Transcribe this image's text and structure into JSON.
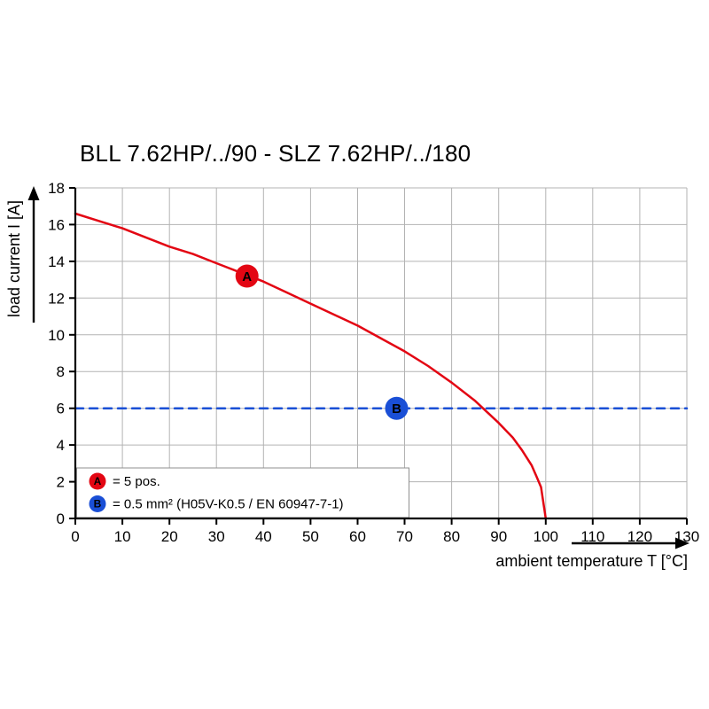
{
  "colors": {
    "curve_red": "#e30613",
    "limit_blue": "#1a4fd6",
    "grid": "#b3b3b3",
    "axis": "#000000",
    "legend_border": "#8f8f8f",
    "background": "#ffffff"
  },
  "chart_data": {
    "type": "line",
    "title": "BLL 7.62HP/../90 - SLZ 7.62HP/../180",
    "xlabel": "ambient temperature T [°C]",
    "ylabel": "load current I [A]",
    "xlim": [
      0,
      130
    ],
    "ylim": [
      0,
      18
    ],
    "xticks": [
      0,
      10,
      20,
      30,
      40,
      50,
      60,
      70,
      80,
      90,
      100,
      110,
      120,
      130
    ],
    "yticks": [
      0,
      2,
      4,
      6,
      8,
      10,
      12,
      14,
      16,
      18
    ],
    "grid": true,
    "series": [
      {
        "name": "derating-curve-5pos",
        "color": "#e30613",
        "style": "solid",
        "points": [
          [
            0,
            16.6
          ],
          [
            5,
            16.2
          ],
          [
            10,
            15.8
          ],
          [
            15,
            15.3
          ],
          [
            20,
            14.8
          ],
          [
            25,
            14.4
          ],
          [
            30,
            13.9
          ],
          [
            35,
            13.4
          ],
          [
            40,
            12.9
          ],
          [
            45,
            12.3
          ],
          [
            50,
            11.7
          ],
          [
            55,
            11.1
          ],
          [
            60,
            10.5
          ],
          [
            65,
            9.8
          ],
          [
            70,
            9.1
          ],
          [
            75,
            8.3
          ],
          [
            80,
            7.4
          ],
          [
            85,
            6.4
          ],
          [
            90,
            5.2
          ],
          [
            93,
            4.4
          ],
          [
            95,
            3.7
          ],
          [
            97,
            2.9
          ],
          [
            98,
            2.3
          ],
          [
            99,
            1.7
          ],
          [
            100,
            0
          ]
        ]
      },
      {
        "name": "rated-current-limit",
        "color": "#1a4fd6",
        "style": "dashed",
        "points": [
          [
            0,
            6
          ],
          [
            130,
            6
          ]
        ]
      }
    ],
    "markers": [
      {
        "label": "A",
        "x": 36.5,
        "y": 13.2,
        "color": "#e30613"
      },
      {
        "label": "B",
        "x": 68.3,
        "y": 6,
        "color": "#1a4fd6"
      }
    ],
    "legend": {
      "position": "bottom-left",
      "entries": [
        {
          "symbol": "A",
          "color": "#e30613",
          "text": "= 5 pos."
        },
        {
          "symbol": "B",
          "color": "#1a4fd6",
          "text": "= 0.5 mm² (H05V-K0.5 / EN 60947-7-1)"
        }
      ]
    }
  }
}
